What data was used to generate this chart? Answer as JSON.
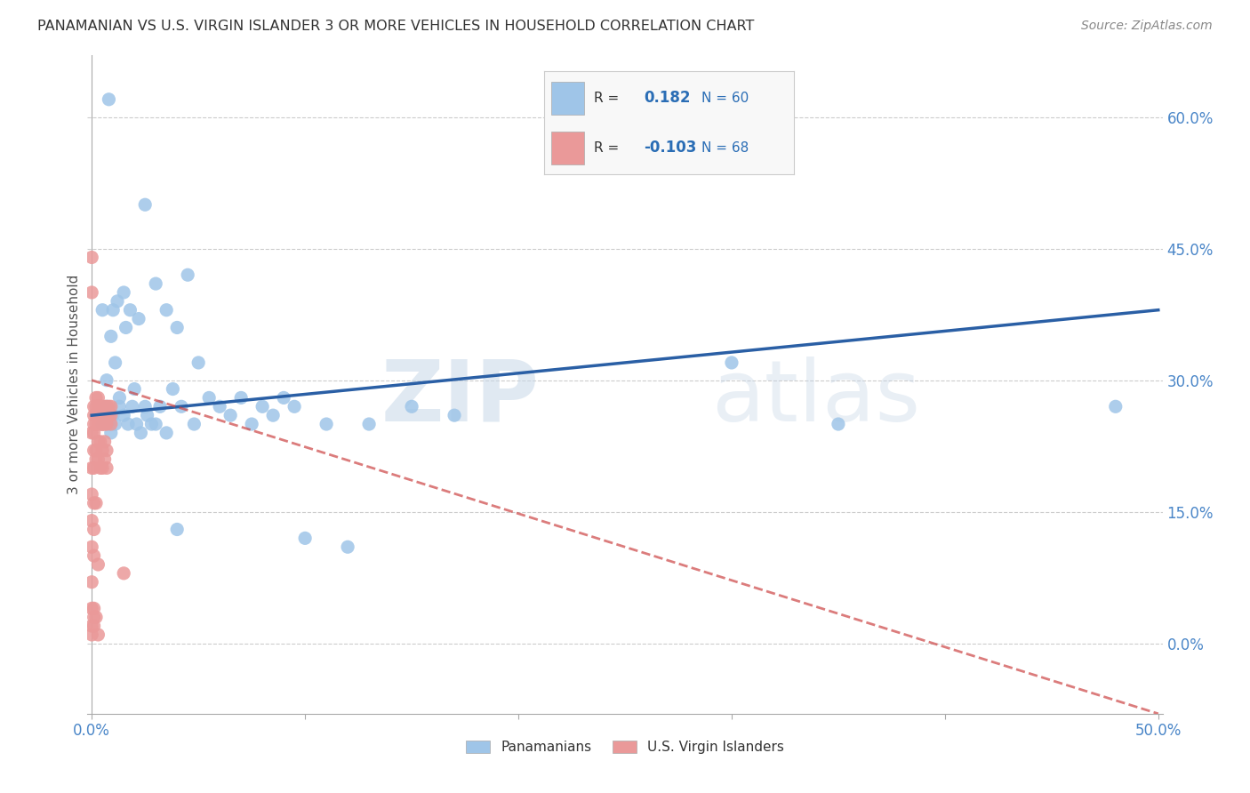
{
  "title": "PANAMANIAN VS U.S. VIRGIN ISLANDER 3 OR MORE VEHICLES IN HOUSEHOLD CORRELATION CHART",
  "source": "Source: ZipAtlas.com",
  "ylabel": "3 or more Vehicles in Household",
  "xmin": -0.002,
  "xmax": 0.502,
  "ymin": -0.08,
  "ymax": 0.67,
  "right_ytick_vals": [
    0.0,
    0.15,
    0.3,
    0.45,
    0.6
  ],
  "right_ytick_labels": [
    "0.0%",
    "15.0%",
    "30.0%",
    "45.0%",
    "60.0%"
  ],
  "xtick_vals": [
    0.0,
    0.1,
    0.2,
    0.3,
    0.4,
    0.5
  ],
  "xtick_labels": [
    "0.0%",
    "",
    "",
    "",
    "",
    "50.0%"
  ],
  "panamanian_color": "#9fc5e8",
  "virgin_islander_color": "#ea9999",
  "panamanian_line_color": "#2a5fa5",
  "virgin_islander_line_color": "#cc4444",
  "background_color": "#ffffff",
  "watermark1": "ZIP",
  "watermark2": "atlas",
  "legend_box_color": "#f5f5f5",
  "pana_scatter": {
    "x": [
      0.008,
      0.025,
      0.005,
      0.01,
      0.012,
      0.015,
      0.018,
      0.022,
      0.03,
      0.035,
      0.04,
      0.045,
      0.05,
      0.06,
      0.07,
      0.08,
      0.09,
      0.1,
      0.12,
      0.15,
      0.007,
      0.009,
      0.011,
      0.013,
      0.016,
      0.02,
      0.025,
      0.028,
      0.032,
      0.038,
      0.042,
      0.048,
      0.055,
      0.065,
      0.075,
      0.085,
      0.095,
      0.11,
      0.13,
      0.17,
      0.005,
      0.006,
      0.007,
      0.008,
      0.009,
      0.01,
      0.011,
      0.013,
      0.015,
      0.017,
      0.019,
      0.021,
      0.023,
      0.026,
      0.03,
      0.035,
      0.04,
      0.48,
      0.3,
      0.35
    ],
    "y": [
      0.62,
      0.5,
      0.38,
      0.38,
      0.39,
      0.4,
      0.38,
      0.37,
      0.41,
      0.38,
      0.36,
      0.42,
      0.32,
      0.27,
      0.28,
      0.27,
      0.28,
      0.12,
      0.11,
      0.27,
      0.3,
      0.35,
      0.32,
      0.28,
      0.36,
      0.29,
      0.27,
      0.25,
      0.27,
      0.29,
      0.27,
      0.25,
      0.28,
      0.26,
      0.25,
      0.26,
      0.27,
      0.25,
      0.25,
      0.26,
      0.25,
      0.26,
      0.27,
      0.25,
      0.24,
      0.26,
      0.25,
      0.27,
      0.26,
      0.25,
      0.27,
      0.25,
      0.24,
      0.26,
      0.25,
      0.24,
      0.13,
      0.27,
      0.32,
      0.25
    ]
  },
  "vi_scatter": {
    "x": [
      0.0,
      0.0,
      0.001,
      0.001,
      0.001,
      0.002,
      0.002,
      0.002,
      0.003,
      0.003,
      0.003,
      0.004,
      0.004,
      0.004,
      0.005,
      0.005,
      0.005,
      0.006,
      0.006,
      0.007,
      0.007,
      0.008,
      0.008,
      0.009,
      0.009,
      0.0,
      0.001,
      0.002,
      0.003,
      0.004,
      0.005,
      0.006,
      0.007,
      0.008,
      0.009,
      0.001,
      0.002,
      0.003,
      0.004,
      0.005,
      0.006,
      0.007,
      0.0,
      0.001,
      0.002,
      0.003,
      0.004,
      0.005,
      0.006,
      0.007,
      0.0,
      0.001,
      0.002,
      0.0,
      0.001,
      0.0,
      0.001,
      0.003,
      0.015,
      0.0,
      0.0,
      0.001,
      0.0,
      0.001,
      0.0,
      0.003,
      0.001,
      0.002
    ],
    "y": [
      0.44,
      0.4,
      0.27,
      0.26,
      0.25,
      0.28,
      0.27,
      0.26,
      0.28,
      0.27,
      0.26,
      0.27,
      0.26,
      0.25,
      0.27,
      0.26,
      0.25,
      0.27,
      0.26,
      0.27,
      0.26,
      0.27,
      0.26,
      0.27,
      0.26,
      0.24,
      0.24,
      0.25,
      0.25,
      0.26,
      0.25,
      0.25,
      0.25,
      0.26,
      0.25,
      0.22,
      0.22,
      0.23,
      0.23,
      0.22,
      0.23,
      0.22,
      0.2,
      0.2,
      0.21,
      0.21,
      0.2,
      0.2,
      0.21,
      0.2,
      0.17,
      0.16,
      0.16,
      0.14,
      0.13,
      0.11,
      0.1,
      0.09,
      0.08,
      0.07,
      0.04,
      0.04,
      0.02,
      0.02,
      0.01,
      0.01,
      0.03,
      0.03
    ]
  },
  "pana_line_x": [
    0.0,
    0.5
  ],
  "pana_line_y": [
    0.26,
    0.38
  ],
  "vi_line_x": [
    0.0,
    0.5
  ],
  "vi_line_y": [
    0.3,
    -0.08
  ]
}
